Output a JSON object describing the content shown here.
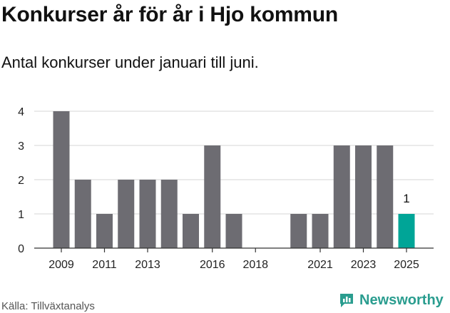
{
  "header": {
    "title": "Konkurser år för år i Hjo kommun",
    "subtitle": "Antal konkurser under januari till juni."
  },
  "footer": {
    "source": "Källa: Tillväxtanalys",
    "brand": "Newsworthy"
  },
  "colors": {
    "bar": "#6d6c72",
    "highlight": "#00a597",
    "grid": "#dddddd",
    "axis": "#333333",
    "brand": "#2a9d8f"
  },
  "chart_data": {
    "type": "bar",
    "categories": [
      "2009",
      "2010",
      "2011",
      "2012",
      "2013",
      "2014",
      "2015",
      "2016",
      "2017",
      "2018",
      "2019",
      "2020",
      "2021",
      "2022",
      "2023",
      "2024",
      "2025"
    ],
    "values": [
      4,
      2,
      1,
      2,
      2,
      2,
      1,
      3,
      1,
      0,
      0,
      1,
      1,
      3,
      3,
      3,
      1
    ],
    "highlight_category": "2025",
    "data_labels": [
      {
        "category": "2025",
        "text": "1"
      }
    ],
    "x_tick_labels": [
      "2009",
      "2011",
      "2013",
      "2016",
      "2018",
      "2021",
      "2023",
      "2025"
    ],
    "y_ticks": [
      0,
      1,
      2,
      3,
      4
    ],
    "ylim": [
      0,
      4
    ],
    "grid": true,
    "xlabel": "",
    "ylabel": ""
  }
}
